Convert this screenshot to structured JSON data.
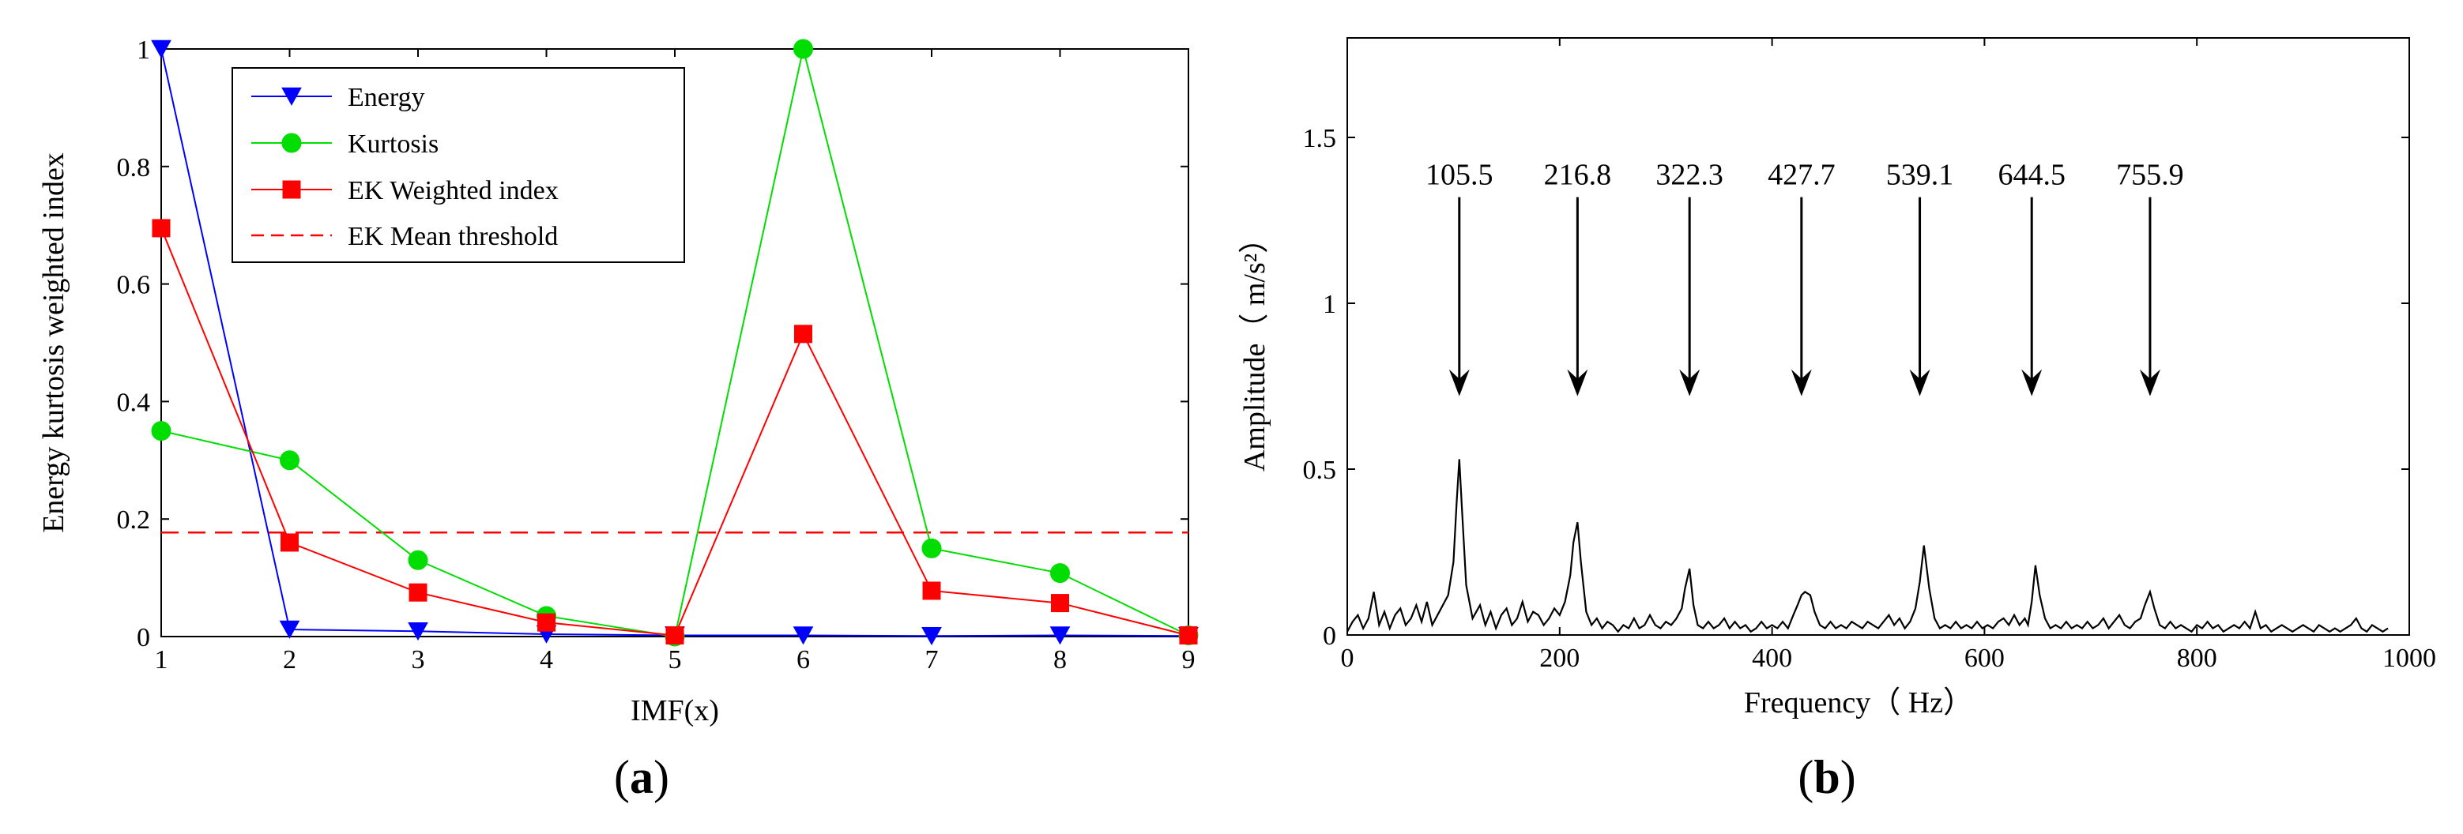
{
  "colors": {
    "energy": "#0000ff",
    "kurtosis": "#00dd00",
    "ek": "#ff0000",
    "threshold": "#ff0000",
    "spectrum": "#000000"
  },
  "chart_data": [
    {
      "id": "a",
      "type": "line",
      "panel_open": "(",
      "panel_letter": "a",
      "panel_close": ")",
      "xlabel": "IMF(x)",
      "ylabel": "Energy kurtosis weighted index",
      "x": [
        1,
        2,
        3,
        4,
        5,
        6,
        7,
        8,
        9
      ],
      "xlim": [
        1,
        9
      ],
      "ylim": [
        0,
        1
      ],
      "x_ticks": [
        "1",
        "2",
        "3",
        "4",
        "5",
        "6",
        "7",
        "8",
        "9"
      ],
      "y_ticks": [
        "0",
        "0.2",
        "0.4",
        "0.6",
        "0.8",
        "1"
      ],
      "legend_position": "top-left",
      "series": [
        {
          "name": "Energy",
          "marker": "triangle-down",
          "values": [
            1.0,
            0.012,
            0.009,
            0.004,
            0.002,
            0.002,
            0.001,
            0.002,
            0.001
          ]
        },
        {
          "name": "Kurtosis",
          "marker": "circle",
          "values": [
            0.35,
            0.3,
            0.13,
            0.035,
            0.0,
            1.0,
            0.15,
            0.108,
            0.002
          ]
        },
        {
          "name": "EK Weighted index",
          "marker": "square",
          "values": [
            0.695,
            0.16,
            0.075,
            0.024,
            0.002,
            0.515,
            0.078,
            0.057,
            0.002
          ]
        },
        {
          "name": "EK Mean threshold",
          "style": "dashed",
          "value": 0.177
        }
      ]
    },
    {
      "id": "b",
      "type": "line",
      "panel_open": "(",
      "panel_letter": "b",
      "panel_close": ")",
      "xlabel": "Frequency（ Hz）",
      "ylabel": "Amplitude（ m/s²）",
      "xlim": [
        0,
        1000
      ],
      "ylim": [
        0,
        1.8
      ],
      "x_ticks": [
        "0",
        "200",
        "400",
        "600",
        "800",
        "1000"
      ],
      "y_ticks": [
        "0",
        "0.5",
        "1",
        "1.5"
      ],
      "peaks": [
        {
          "freq": 105.5,
          "label": "105.5",
          "amplitude": 0.53
        },
        {
          "freq": 216.8,
          "label": "216.8",
          "amplitude": 0.34
        },
        {
          "freq": 322.3,
          "label": "322.3",
          "amplitude": 0.2
        },
        {
          "freq": 427.7,
          "label": "427.7",
          "amplitude": 0.13
        },
        {
          "freq": 539.1,
          "label": "539.1",
          "amplitude": 0.27
        },
        {
          "freq": 644.5,
          "label": "644.5",
          "amplitude": 0.21
        },
        {
          "freq": 755.9,
          "label": "755.9",
          "amplitude": 0.13
        }
      ],
      "arrow_head_amplitude": 0.72,
      "arrow_tail_amplitude": 1.32,
      "spectrum": {
        "freq": [
          0,
          5,
          10,
          15,
          20,
          25,
          30,
          35,
          40,
          45,
          50,
          55,
          60,
          65,
          70,
          75,
          80,
          85,
          90,
          95,
          100,
          103,
          105.5,
          108,
          112,
          118,
          125,
          130,
          135,
          140,
          145,
          150,
          155,
          160,
          165,
          170,
          175,
          180,
          185,
          190,
          195,
          200,
          205,
          210,
          213,
          216.8,
          220,
          225,
          230,
          235,
          240,
          245,
          250,
          255,
          260,
          265,
          270,
          275,
          280,
          285,
          290,
          295,
          300,
          305,
          310,
          315,
          318,
          322.3,
          326,
          330,
          335,
          340,
          345,
          350,
          355,
          360,
          365,
          370,
          375,
          380,
          385,
          390,
          395,
          400,
          405,
          410,
          415,
          420,
          424,
          427.7,
          431,
          436,
          440,
          445,
          450,
          455,
          460,
          465,
          470,
          475,
          480,
          485,
          490,
          495,
          500,
          505,
          510,
          515,
          520,
          525,
          530,
          535,
          539.1,
          543,
          548,
          553,
          558,
          563,
          568,
          573,
          578,
          583,
          588,
          593,
          598,
          603,
          608,
          613,
          618,
          623,
          628,
          633,
          638,
          641,
          644.5,
          648,
          652,
          657,
          662,
          667,
          672,
          677,
          682,
          687,
          692,
          697,
          702,
          707,
          712,
          717,
          722,
          727,
          732,
          737,
          742,
          747,
          751,
          755.9,
          760,
          765,
          770,
          775,
          780,
          785,
          790,
          795,
          800,
          805,
          810,
          815,
          820,
          825,
          830,
          835,
          840,
          845,
          850,
          855,
          860,
          865,
          870,
          875,
          880,
          885,
          890,
          895,
          900,
          905,
          910,
          915,
          920,
          925,
          930,
          935,
          940,
          945,
          950,
          955,
          960,
          965,
          970,
          975,
          980,
          985,
          990,
          995,
          1000
        ],
        "amp": [
          0.01,
          0.04,
          0.06,
          0.02,
          0.05,
          0.13,
          0.03,
          0.07,
          0.02,
          0.06,
          0.08,
          0.03,
          0.05,
          0.09,
          0.04,
          0.1,
          0.03,
          0.06,
          0.09,
          0.12,
          0.22,
          0.4,
          0.53,
          0.38,
          0.15,
          0.05,
          0.09,
          0.03,
          0.07,
          0.02,
          0.06,
          0.08,
          0.03,
          0.05,
          0.1,
          0.04,
          0.07,
          0.06,
          0.03,
          0.05,
          0.08,
          0.06,
          0.1,
          0.18,
          0.28,
          0.34,
          0.22,
          0.07,
          0.03,
          0.05,
          0.02,
          0.04,
          0.03,
          0.01,
          0.03,
          0.02,
          0.05,
          0.02,
          0.03,
          0.06,
          0.03,
          0.02,
          0.04,
          0.03,
          0.05,
          0.08,
          0.14,
          0.2,
          0.09,
          0.03,
          0.02,
          0.04,
          0.02,
          0.03,
          0.05,
          0.02,
          0.04,
          0.02,
          0.03,
          0.01,
          0.02,
          0.04,
          0.02,
          0.03,
          0.02,
          0.04,
          0.02,
          0.06,
          0.09,
          0.12,
          0.13,
          0.12,
          0.07,
          0.03,
          0.02,
          0.04,
          0.02,
          0.03,
          0.02,
          0.04,
          0.03,
          0.02,
          0.04,
          0.03,
          0.02,
          0.04,
          0.06,
          0.03,
          0.05,
          0.02,
          0.04,
          0.08,
          0.16,
          0.27,
          0.14,
          0.05,
          0.02,
          0.03,
          0.02,
          0.04,
          0.02,
          0.03,
          0.02,
          0.04,
          0.02,
          0.03,
          0.02,
          0.04,
          0.05,
          0.03,
          0.06,
          0.03,
          0.05,
          0.03,
          0.1,
          0.21,
          0.12,
          0.05,
          0.02,
          0.03,
          0.02,
          0.04,
          0.02,
          0.03,
          0.02,
          0.04,
          0.02,
          0.03,
          0.05,
          0.02,
          0.04,
          0.06,
          0.03,
          0.02,
          0.04,
          0.05,
          0.09,
          0.13,
          0.08,
          0.03,
          0.02,
          0.04,
          0.02,
          0.03,
          0.02,
          0.01,
          0.03,
          0.02,
          0.04,
          0.02,
          0.03,
          0.01,
          0.02,
          0.03,
          0.02,
          0.04,
          0.02,
          0.07,
          0.02,
          0.03,
          0.01,
          0.02,
          0.03,
          0.02,
          0.01,
          0.02,
          0.03,
          0.02,
          0.01,
          0.03,
          0.02,
          0.01,
          0.02,
          0.01,
          0.02,
          0.03,
          0.05,
          0.02,
          0.01,
          0.03,
          0.02,
          0.01,
          0.02
        ]
      }
    }
  ]
}
